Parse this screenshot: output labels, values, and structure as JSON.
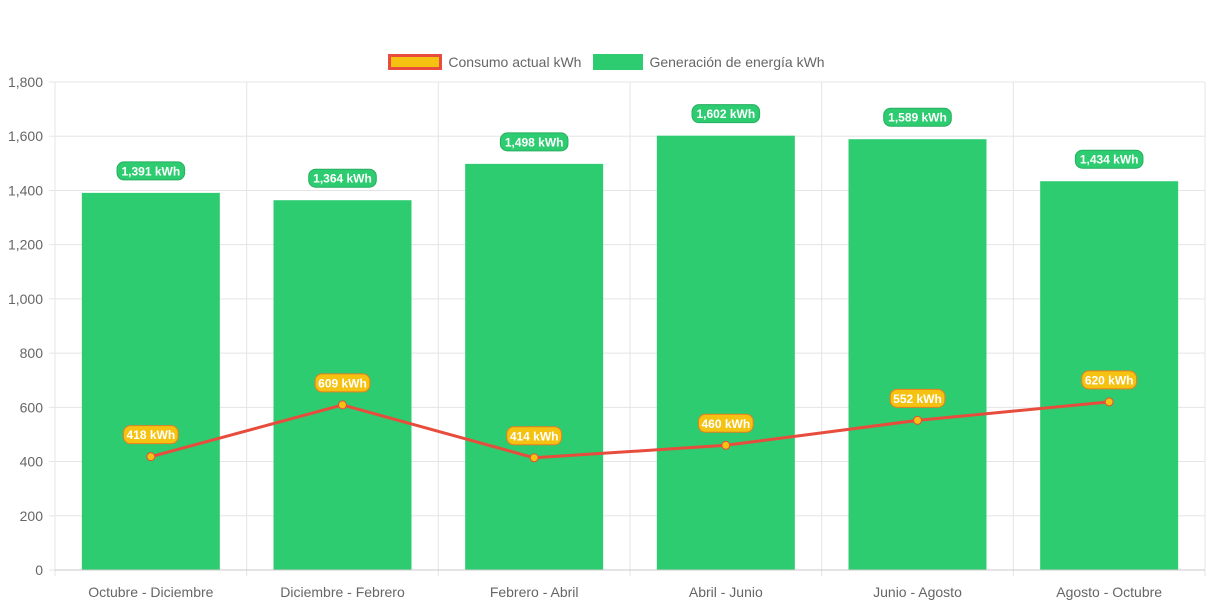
{
  "colors": {
    "bar": "#2ecc71",
    "line": "#e74c3c",
    "point_fill": "#f5c211",
    "grid": "#e5e5e5",
    "tick_text": "#666666"
  },
  "legend": {
    "line_label": "Consumo actual kWh",
    "bar_label": "Generación de energía kWh",
    "placement": "top-center"
  },
  "chart_data": {
    "type": "bar",
    "categories": [
      "Octubre - Diciembre",
      "Diciembre - Febrero",
      "Febrero - Abril",
      "Abril - Junio",
      "Junio - Agosto",
      "Agosto - Octubre"
    ],
    "series": [
      {
        "name": "Generación de energía kWh",
        "type": "bar",
        "values": [
          1391,
          1364,
          1498,
          1602,
          1589,
          1434
        ],
        "data_labels": [
          "1,391 kWh",
          "1,364 kWh",
          "1,498 kWh",
          "1,602 kWh",
          "1,589 kWh",
          "1,434 kWh"
        ]
      },
      {
        "name": "Consumo actual kWh",
        "type": "line",
        "values": [
          418,
          609,
          414,
          460,
          552,
          620
        ],
        "data_labels": [
          "418 kWh",
          "609 kWh",
          "414 kWh",
          "460 kWh",
          "552 kWh",
          "620 kWh"
        ]
      }
    ],
    "ylim": [
      0,
      1800
    ],
    "yticks": [
      0,
      200,
      400,
      600,
      800,
      1000,
      1200,
      1400,
      1600,
      1800
    ],
    "ytick_labels": [
      "0",
      "200",
      "400",
      "600",
      "800",
      "1,000",
      "1,200",
      "1,400",
      "1,600",
      "1,800"
    ],
    "grid": true
  }
}
